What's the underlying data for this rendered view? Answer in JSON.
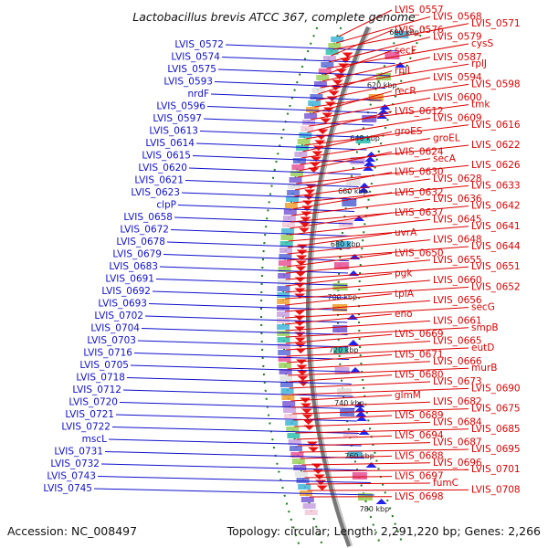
{
  "title": "Lactobacillus brevis ATCC 367, complete genome",
  "accession": "Accession: NC_008497",
  "topology": "Topology: circular; Length: 2,291,220 bp; Genes: 2,266",
  "colors": {
    "left_label": "#1010cc",
    "right_label": "#dd0000",
    "left_arrow": "#2222ee",
    "right_arrow": "#ee1111",
    "backbone": "#777777",
    "tick_dot": "#1a7a1a"
  },
  "ticks": [
    "600 kbp",
    "620 kbp",
    "640 kbp",
    "660 kbp",
    "680 kbp",
    "700 kbp",
    "720 kbp",
    "740 kbp",
    "760 kbp",
    "780 kbp"
  ],
  "left_labels": [
    "LVIS_0572",
    "LVIS_0574",
    "LVIS_0575",
    "LVIS_0593",
    "nrdF",
    "LVIS_0596",
    "LVIS_0597",
    "LVIS_0613",
    "LVIS_0614",
    "LVIS_0615",
    "LVIS_0620",
    "LVIS_0621",
    "LVIS_0623",
    "clpP",
    "LVIS_0658",
    "LVIS_0672",
    "LVIS_0678",
    "LVIS_0679",
    "LVIS_0683",
    "LVIS_0691",
    "LVIS_0692",
    "LVIS_0693",
    "LVIS_0702",
    "LVIS_0704",
    "LVIS_0703",
    "LVIS_0716",
    "LVIS_0705",
    "LVIS_0718",
    "LVIS_0712",
    "LVIS_0720",
    "LVIS_0721",
    "LVIS_0722",
    "mscL",
    "LVIS_0731",
    "LVIS_0732",
    "LVIS_0743",
    "LVIS_0745"
  ],
  "right_labels": [
    "LVIS_0557",
    "LVIS_0568",
    "LVIS_0571",
    "LVIS_0576",
    "LVIS_0579",
    "cysS",
    "secE",
    "LVIS_0587",
    "rplJ",
    "rplL",
    "LVIS_0594",
    "LVIS_0598",
    "recR",
    "LVIS_0600",
    "tmk",
    "LVIS_0612",
    "LVIS_0609",
    "LVIS_0616",
    "groES",
    "groEL",
    "LVIS_0622",
    "LVIS_0624",
    "secA",
    "LVIS_0626",
    "LVIS_0630",
    "LVIS_0628",
    "LVIS_0633",
    "LVIS_0632",
    "LVIS_0636",
    "LVIS_0642",
    "LVIS_0637",
    "LVIS_0645",
    "LVIS_0641",
    "uvrA",
    "LVIS_0648",
    "LVIS_0644",
    "LVIS_0650",
    "LVIS_0655",
    "LVIS_0651",
    "pgk",
    "LVIS_0660",
    "LVIS_0652",
    "tpiA",
    "LVIS_0656",
    "secG",
    "eno",
    "LVIS_0661",
    "smpB",
    "LVIS_0669",
    "LVIS_0665",
    "eutD",
    "LVIS_0671",
    "LVIS_0666",
    "murB",
    "LVIS_0680",
    "LVIS_0673",
    "LVIS_0690",
    "glmM",
    "LVIS_0682",
    "LVIS_0675",
    "LVIS_0689",
    "LVIS_0684",
    "LVIS_0685",
    "LVIS_0694",
    "LVIS_0687",
    "LVIS_0695",
    "LVIS_0688",
    "LVIS_0696",
    "LVIS_0701",
    "LVIS_0697",
    "fumC",
    "LVIS_0708",
    "LVIS_0698"
  ]
}
